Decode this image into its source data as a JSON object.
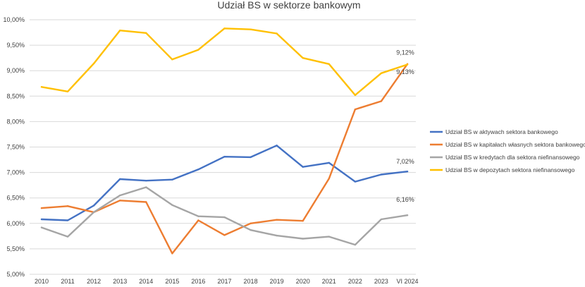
{
  "chart_data": {
    "type": "line",
    "title": "Udział BS w sektorze bankowym",
    "categories": [
      "2010",
      "2011",
      "2012",
      "2013",
      "2014",
      "2015",
      "2016",
      "2017",
      "2018",
      "2019",
      "2020",
      "2021",
      "2022",
      "2023",
      "VI 2024"
    ],
    "ylim": [
      5.0,
      10.0
    ],
    "yticks": [
      5.0,
      5.5,
      6.0,
      6.5,
      7.0,
      7.5,
      8.0,
      8.5,
      9.0,
      9.5,
      10.0
    ],
    "ytick_labels": [
      "5,00%",
      "5,50%",
      "6,00%",
      "6,50%",
      "7,00%",
      "7,50%",
      "8,00%",
      "8,50%",
      "9,00%",
      "9,50%",
      "10,00%"
    ],
    "grid": true,
    "legend_position": "right",
    "series": [
      {
        "name": "Udział BS w aktywach sektora bankowego",
        "color": "#4472c4",
        "values": [
          6.08,
          6.06,
          6.35,
          6.87,
          6.84,
          6.86,
          7.06,
          7.31,
          7.3,
          7.53,
          7.11,
          7.19,
          6.82,
          6.96,
          7.02
        ],
        "end_label": "7,02%"
      },
      {
        "name": "Udział BS w kapitałach własnych sektora bankowego",
        "color": "#ed7d31",
        "values": [
          6.3,
          6.34,
          6.22,
          6.45,
          6.42,
          5.41,
          6.06,
          5.77,
          6.0,
          6.07,
          6.05,
          6.88,
          8.24,
          8.4,
          9.13
        ],
        "end_label": "9,13%"
      },
      {
        "name": "Udział BS w kredytach dla sektora niefinansowego",
        "color": "#a5a5a5",
        "values": [
          5.92,
          5.74,
          6.22,
          6.55,
          6.71,
          6.36,
          6.14,
          6.12,
          5.87,
          5.76,
          5.7,
          5.74,
          5.58,
          6.08,
          6.16
        ],
        "end_label": "6,16%"
      },
      {
        "name": "Udział BS w depozytach sektora niefinansowego",
        "color": "#ffc000",
        "values": [
          8.68,
          8.59,
          9.14,
          9.79,
          9.74,
          9.22,
          9.41,
          9.83,
          9.81,
          9.73,
          9.25,
          9.13,
          8.52,
          8.95,
          9.12
        ],
        "end_label": "9,12%"
      }
    ]
  }
}
